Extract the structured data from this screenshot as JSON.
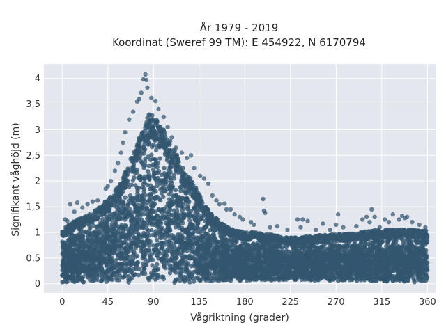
{
  "chart_data": {
    "type": "scatter",
    "title_line1": "År 1979 - 2019",
    "title_line2": "Koordinat (Sweref 99 TM): E 454922, N 6170794",
    "xlabel": "Vågriktning (grader)",
    "ylabel": "Signifikant våghöjd (m)",
    "xlim": [
      -18,
      368
    ],
    "ylim": [
      -0.18,
      4.28
    ],
    "x_ticks": [
      0,
      45,
      90,
      135,
      180,
      225,
      270,
      315,
      360
    ],
    "x_tick_labels": [
      "0",
      "45",
      "90",
      "135",
      "180",
      "225",
      "270",
      "315",
      "360"
    ],
    "y_ticks": [
      0,
      0.5,
      1,
      1.5,
      2,
      2.5,
      3,
      3.5,
      4
    ],
    "y_tick_labels": [
      "0",
      "0,5",
      "1",
      "1,5",
      "2",
      "2,5",
      "3",
      "3,5",
      "4"
    ],
    "grid": true,
    "colors": {
      "marker": "#33566f",
      "plot_background": "#e5e7ef",
      "grid": "#ffffff"
    },
    "envelope": {
      "x": [
        0,
        10,
        20,
        30,
        40,
        50,
        60,
        70,
        80,
        85,
        90,
        100,
        110,
        120,
        130,
        140,
        150,
        160,
        170,
        180,
        190,
        200,
        210,
        220,
        230,
        240,
        250,
        260,
        270,
        280,
        290,
        300,
        310,
        320,
        330,
        340,
        350,
        360
      ],
      "y_upper": [
        1.05,
        1.2,
        1.3,
        1.4,
        1.55,
        1.75,
        2.1,
        2.55,
        3.05,
        3.35,
        3.3,
        3.0,
        2.65,
        2.25,
        1.95,
        1.55,
        1.3,
        1.15,
        1.05,
        1.0,
        1.0,
        0.97,
        0.95,
        0.9,
        0.9,
        0.92,
        0.95,
        0.95,
        0.97,
        0.97,
        1.0,
        1.02,
        1.05,
        1.05,
        1.05,
        1.05,
        1.05,
        1.05
      ],
      "y_lower": [
        0.02,
        0.02,
        0.02,
        0.02,
        0.02,
        0.02,
        0.02,
        0.02,
        0.02,
        0.02,
        0.02,
        0.02,
        0.02,
        0.02,
        0.02,
        0.03,
        0.03,
        0.04,
        0.05,
        0.05,
        0.05,
        0.06,
        0.07,
        0.07,
        0.07,
        0.07,
        0.06,
        0.06,
        0.05,
        0.05,
        0.05,
        0.04,
        0.04,
        0.03,
        0.03,
        0.03,
        0.02,
        0.02
      ]
    },
    "outliers": [
      {
        "x": 82,
        "y": 4.08
      },
      {
        "x": 80,
        "y": 3.98
      },
      {
        "x": 83,
        "y": 3.97
      },
      {
        "x": 78,
        "y": 3.72
      },
      {
        "x": 84,
        "y": 3.82
      },
      {
        "x": 76,
        "y": 3.6
      },
      {
        "x": 88,
        "y": 3.62
      },
      {
        "x": 92,
        "y": 3.56
      },
      {
        "x": 95,
        "y": 3.4
      },
      {
        "x": 74,
        "y": 3.55
      },
      {
        "x": 70,
        "y": 3.35
      },
      {
        "x": 66,
        "y": 3.2
      },
      {
        "x": 100,
        "y": 3.25
      },
      {
        "x": 62,
        "y": 2.95
      },
      {
        "x": 104,
        "y": 3.05
      },
      {
        "x": 108,
        "y": 2.85
      },
      {
        "x": 60,
        "y": 2.75
      },
      {
        "x": 112,
        "y": 2.65
      },
      {
        "x": 58,
        "y": 2.55
      },
      {
        "x": 118,
        "y": 2.55
      },
      {
        "x": 123,
        "y": 2.45
      },
      {
        "x": 127,
        "y": 2.5
      },
      {
        "x": 55,
        "y": 2.35
      },
      {
        "x": 52,
        "y": 2.2
      },
      {
        "x": 130,
        "y": 2.25
      },
      {
        "x": 136,
        "y": 2.1
      },
      {
        "x": 140,
        "y": 2.05
      },
      {
        "x": 144,
        "y": 1.95
      },
      {
        "x": 48,
        "y": 2.0
      },
      {
        "x": 45,
        "y": 1.9
      },
      {
        "x": 43,
        "y": 1.85
      },
      {
        "x": 148,
        "y": 1.72
      },
      {
        "x": 152,
        "y": 1.62
      },
      {
        "x": 155,
        "y": 1.55
      },
      {
        "x": 160,
        "y": 1.56
      },
      {
        "x": 162,
        "y": 1.45
      },
      {
        "x": 166,
        "y": 1.45
      },
      {
        "x": 35,
        "y": 1.62
      },
      {
        "x": 30,
        "y": 1.6
      },
      {
        "x": 25,
        "y": 1.55
      },
      {
        "x": 20,
        "y": 1.48
      },
      {
        "x": 15,
        "y": 1.58
      },
      {
        "x": 8,
        "y": 1.55
      },
      {
        "x": 12,
        "y": 1.4
      },
      {
        "x": 3,
        "y": 1.25
      },
      {
        "x": 5,
        "y": 1.22
      },
      {
        "x": 170,
        "y": 1.35
      },
      {
        "x": 175,
        "y": 1.3
      },
      {
        "x": 178,
        "y": 1.25
      },
      {
        "x": 186,
        "y": 1.2
      },
      {
        "x": 189,
        "y": 1.15
      },
      {
        "x": 198,
        "y": 1.65
      },
      {
        "x": 199,
        "y": 1.42
      },
      {
        "x": 200,
        "y": 1.38
      },
      {
        "x": 205,
        "y": 1.1
      },
      {
        "x": 212,
        "y": 1.12
      },
      {
        "x": 222,
        "y": 1.05
      },
      {
        "x": 232,
        "y": 1.25
      },
      {
        "x": 237,
        "y": 1.25
      },
      {
        "x": 242,
        "y": 1.22
      },
      {
        "x": 235,
        "y": 1.1
      },
      {
        "x": 250,
        "y": 1.05
      },
      {
        "x": 257,
        "y": 1.17
      },
      {
        "x": 264,
        "y": 1.05
      },
      {
        "x": 270,
        "y": 1.15
      },
      {
        "x": 272,
        "y": 1.35
      },
      {
        "x": 277,
        "y": 1.1
      },
      {
        "x": 290,
        "y": 1.12
      },
      {
        "x": 296,
        "y": 1.25
      },
      {
        "x": 300,
        "y": 1.3
      },
      {
        "x": 303,
        "y": 1.2
      },
      {
        "x": 305,
        "y": 1.45
      },
      {
        "x": 308,
        "y": 1.3
      },
      {
        "x": 313,
        "y": 1.1
      },
      {
        "x": 318,
        "y": 1.25
      },
      {
        "x": 322,
        "y": 1.2
      },
      {
        "x": 326,
        "y": 1.35
      },
      {
        "x": 332,
        "y": 1.25
      },
      {
        "x": 335,
        "y": 1.32
      },
      {
        "x": 338,
        "y": 1.28
      },
      {
        "x": 340,
        "y": 1.3
      },
      {
        "x": 345,
        "y": 1.2
      },
      {
        "x": 352,
        "y": 1.15
      },
      {
        "x": 358,
        "y": 1.1
      }
    ]
  }
}
